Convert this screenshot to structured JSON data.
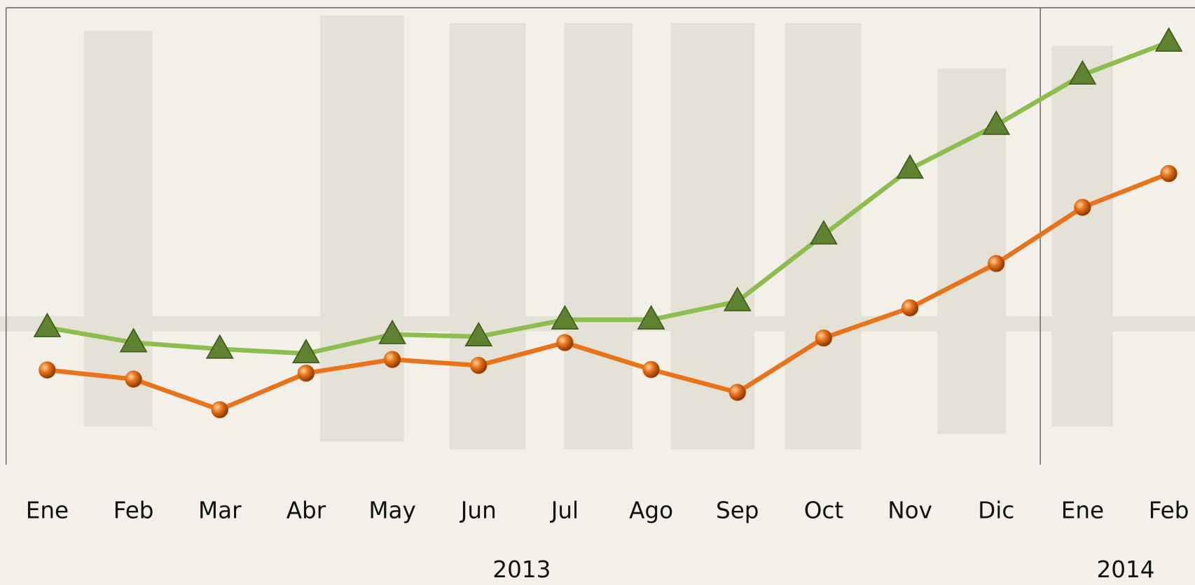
{
  "chart_data": {
    "type": "line",
    "categories": [
      "Ene",
      "Feb",
      "Mar",
      "Abr",
      "May",
      "Jun",
      "Jul",
      "Ago",
      "Sep",
      "Oct",
      "Nov",
      "Dic",
      "Ene",
      "Feb"
    ],
    "groups": [
      {
        "label": "2013",
        "count": 12
      },
      {
        "label": "2014",
        "count": 2
      }
    ],
    "ylim": [
      0,
      100
    ],
    "series": [
      {
        "color": "#8dbd4f",
        "marker": "triangle",
        "marker_color": "#5f8230",
        "values": [
          30,
          26.7,
          25.3,
          24.3,
          28.5,
          28,
          31.7,
          31.7,
          35.7,
          50.3,
          64.7,
          74.3,
          85.3,
          92.5
        ]
      },
      {
        "color": "#e8731a",
        "marker": "circle",
        "marker_color": "#e06a10",
        "values": [
          20.7,
          18.7,
          12,
          20,
          23,
          21.7,
          26.7,
          20.8,
          15.8,
          27.7,
          34.3,
          44,
          56.3,
          63.7
        ]
      }
    ]
  }
}
